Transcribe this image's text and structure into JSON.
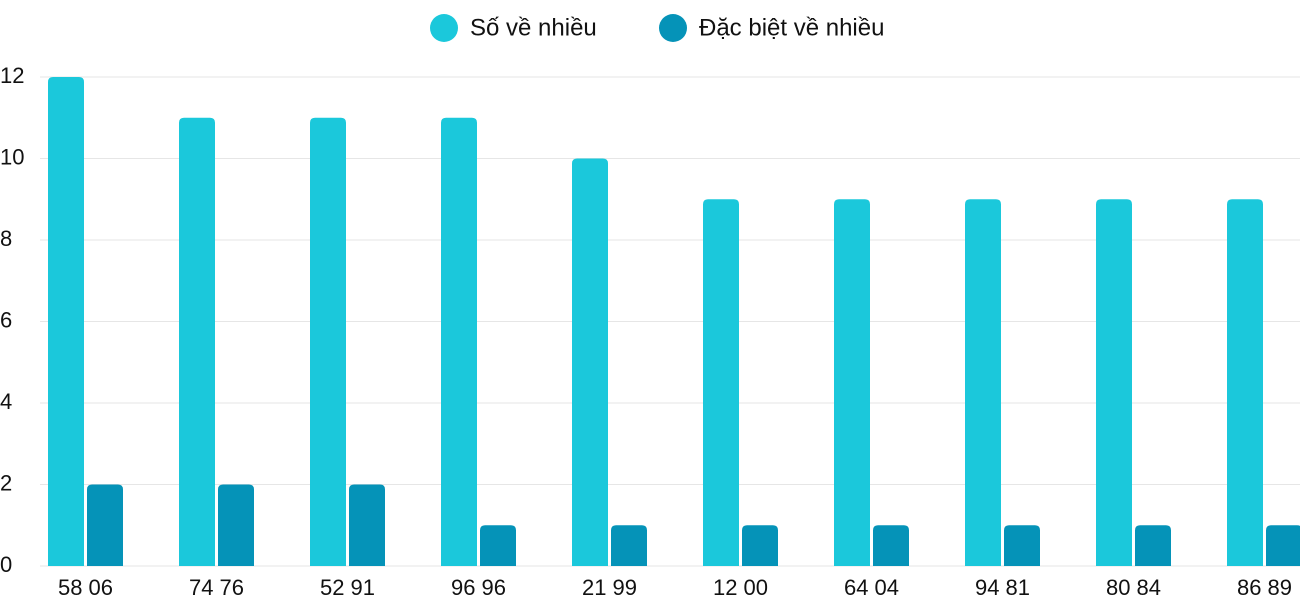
{
  "chart_data": {
    "type": "bar",
    "categories": [
      "58 06",
      "74 76",
      "52 91",
      "96 96",
      "21 99",
      "12 00",
      "64 04",
      "94 81",
      "80 84",
      "86 89"
    ],
    "series": [
      {
        "name": "Số về nhiều",
        "color": "#1bc8db",
        "values": [
          12,
          11,
          11,
          11,
          10,
          9,
          9,
          9,
          9,
          9
        ]
      },
      {
        "name": "Đặc biệt về nhiều",
        "color": "#0593b8",
        "values": [
          2,
          2,
          2,
          1,
          1,
          1,
          1,
          1,
          1,
          1
        ]
      }
    ],
    "ylim": [
      0,
      12
    ],
    "yticks": [
      0,
      2,
      4,
      6,
      8,
      10,
      12
    ],
    "grid": true
  }
}
